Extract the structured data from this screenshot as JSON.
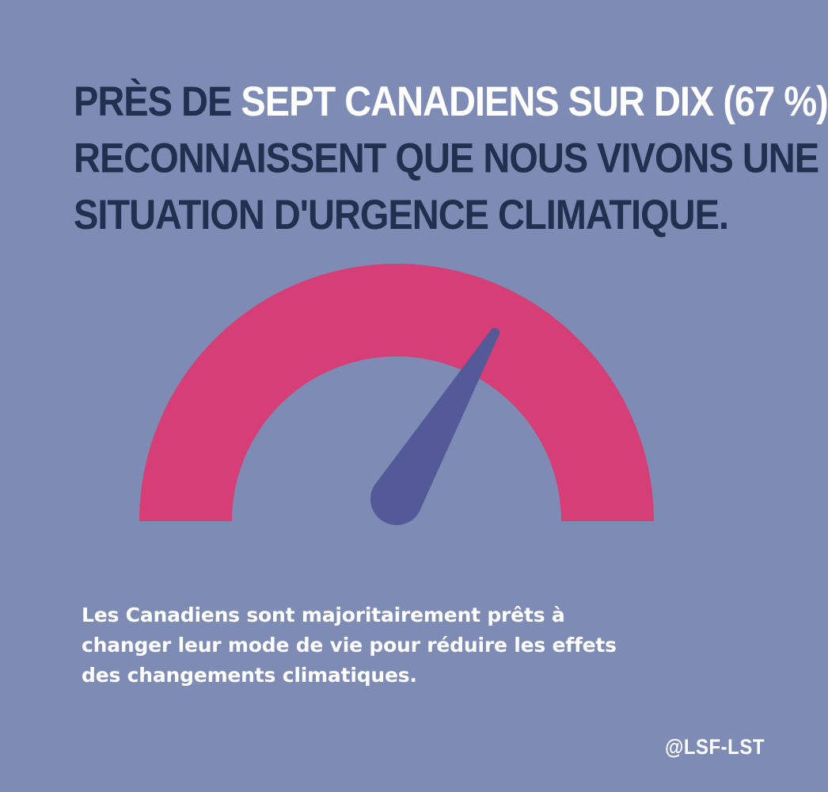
{
  "colors": {
    "background": "#7D8BB5",
    "headline_dark": "#22304F",
    "headline_highlight": "#FFFFFF",
    "gauge_arc": "#D53F75",
    "gauge_needle": "#545A98",
    "caption_text": "#FFFFFF",
    "handle_text": "#FFFFFF"
  },
  "headline": {
    "line1_prefix": "Près de",
    "line1_highlight": "sept Canadiens sur dix (67 %)",
    "line2": "reconnaissent que nous vivons une",
    "line3": "situation d'urgence climatique."
  },
  "gauge": {
    "value_percent": 67,
    "icon": "speedometer-gauge-icon"
  },
  "caption": {
    "line1": "Les Canadiens sont majoritairement prêts à",
    "line2": "changer leur mode de vie pour réduire les effets",
    "line3": "des changements climatiques."
  },
  "handle": "@LSF-LST"
}
